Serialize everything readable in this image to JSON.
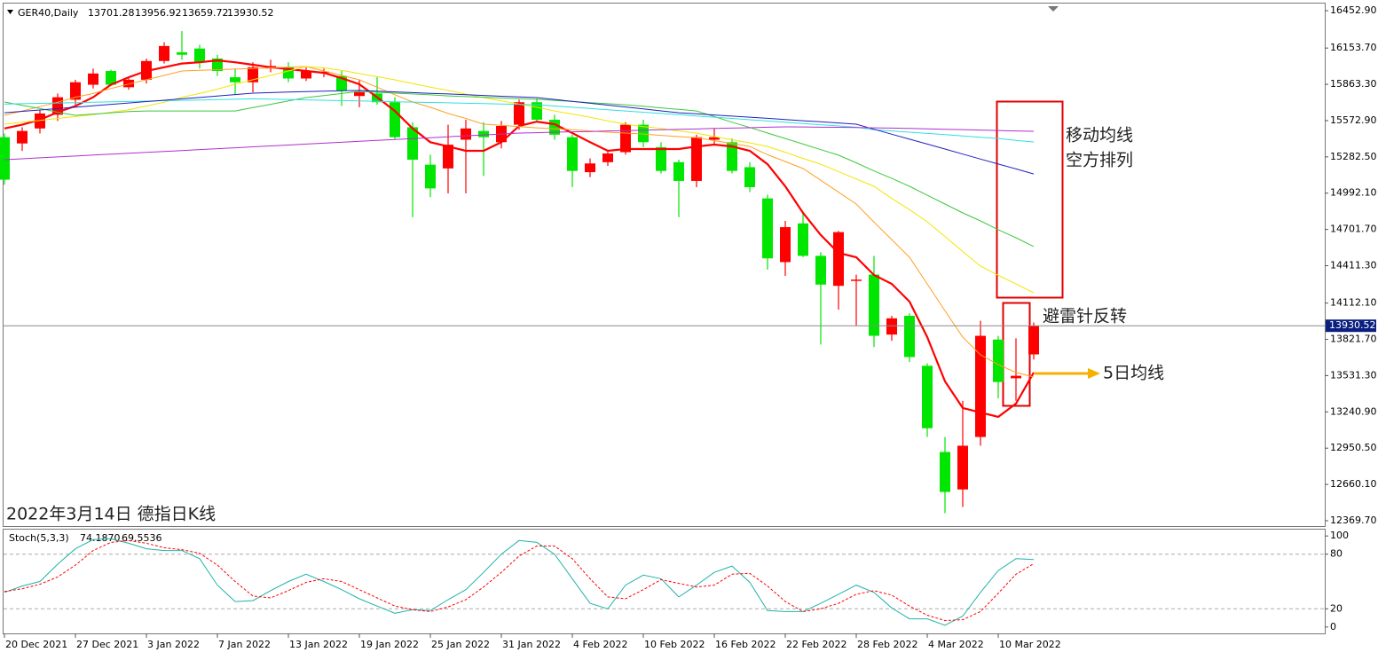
{
  "chart_data": [
    {
      "type": "candlestick",
      "symbol": "GER40,Daily",
      "annotations": [
        "移动均线",
        "空方排列",
        "避雷针反转",
        "5日均线",
        "2022年3月14日 德指日K线"
      ],
      "categories": [
        "20 Dec 2021",
        null,
        null,
        null,
        "27 Dec 2021",
        null,
        null,
        null,
        "3 Jan 2022",
        null,
        null,
        null,
        "7 Jan 2022",
        null,
        null,
        null,
        "13 Jan 2022",
        null,
        null,
        null,
        "19 Jan 2022",
        null,
        null,
        null,
        "25 Jan 2022",
        null,
        null,
        null,
        "31 Jan 2022",
        null,
        null,
        null,
        "4 Feb 2022",
        null,
        null,
        null,
        "10 Feb 2022",
        null,
        null,
        null,
        "16 Feb 2022",
        null,
        null,
        null,
        "22 Feb 2022",
        null,
        null,
        null,
        "28 Feb 2022",
        null,
        null,
        null,
        "4 Mar 2022",
        null,
        null,
        null,
        "10 Mar 2022",
        null,
        null
      ],
      "open": [
        15440,
        15390,
        15510,
        15620,
        15740,
        15860,
        15970,
        15840,
        15900,
        16050,
        16120,
        16150,
        16070,
        15920,
        15880,
        15990,
        16000,
        15910,
        15955,
        15930,
        15770,
        15790,
        15720,
        15520,
        15220,
        15190,
        15420,
        15490,
        15400,
        15540,
        15720,
        15580,
        15440,
        15160,
        15240,
        15320,
        15540,
        15360,
        15240,
        15090,
        15420,
        15400,
        15200,
        14950,
        14440,
        14750,
        14490,
        14250,
        14290,
        14340,
        13860,
        14010,
        13610,
        12920,
        12620,
        13040,
        13820,
        13510,
        13701.28
      ],
      "high": [
        15470,
        15520,
        15660,
        15790,
        15900,
        15990,
        15980,
        15920,
        16070,
        16200,
        16290,
        16180,
        16100,
        15990,
        16040,
        16060,
        16040,
        16000,
        15990,
        15970,
        15900,
        15920,
        15760,
        15560,
        15300,
        15540,
        15580,
        15560,
        15570,
        15740,
        15750,
        15620,
        15460,
        15270,
        15340,
        15560,
        15580,
        15400,
        15260,
        15460,
        15510,
        15430,
        15240,
        14980,
        14770,
        14830,
        14520,
        14690,
        14340,
        14490,
        14010,
        14030,
        13630,
        13040,
        13330,
        13970,
        13850,
        13830,
        13956.92
      ],
      "low": [
        15060,
        15330,
        15470,
        15570,
        15700,
        15830,
        15850,
        15820,
        15870,
        16030,
        16060,
        15990,
        15930,
        15780,
        15800,
        15960,
        15880,
        15890,
        15920,
        15690,
        15680,
        15700,
        15420,
        14800,
        14960,
        14990,
        14990,
        15130,
        15350,
        15500,
        15560,
        15420,
        15040,
        15120,
        15210,
        15300,
        15360,
        15150,
        14800,
        15040,
        15380,
        15150,
        15000,
        14380,
        14330,
        14480,
        13780,
        14060,
        13930,
        13760,
        13810,
        13640,
        13040,
        12430,
        12480,
        12970,
        13350,
        13330,
        13659.72
      ],
      "close": [
        15100,
        15490,
        15630,
        15760,
        15880,
        15950,
        15860,
        15900,
        16050,
        16170,
        16100,
        16040,
        15970,
        15880,
        16000,
        16010,
        15910,
        15970,
        15965,
        15810,
        15800,
        15720,
        15440,
        15260,
        15030,
        15380,
        15510,
        15440,
        15530,
        15720,
        15580,
        15460,
        15170,
        15230,
        15310,
        15540,
        15400,
        15170,
        15090,
        15440,
        15440,
        15170,
        15040,
        14470,
        14720,
        14490,
        14260,
        14680,
        14300,
        13850,
        13990,
        13680,
        13110,
        12600,
        12970,
        13850,
        13480,
        13530,
        13930.52
      ],
      "up_color": "#ff0000",
      "down_color": "#00e600",
      "series": [
        {
          "color": "#ff0000",
          "width": 2.2,
          "values": [
            15510,
            15540,
            15580,
            15640,
            15690,
            15760,
            15860,
            15920,
            15970,
            16000,
            16030,
            16040,
            16055,
            16040,
            16020,
            16000,
            15985,
            15970,
            15955,
            15913,
            15864,
            15760,
            15650,
            15510,
            15400,
            15366,
            15331,
            15331,
            15400,
            15530,
            15565,
            15544,
            15473,
            15400,
            15331,
            15345,
            15345,
            15345,
            15345,
            15366,
            15381,
            15366,
            15331,
            15224,
            15047,
            14834,
            14657,
            14514,
            14479,
            14337,
            14266,
            14124,
            13840,
            13485,
            13272,
            13237,
            13201,
            13307,
            13556
          ]
        },
        {
          "color": "#ffa020",
          "width": 1,
          "values": [
            15615,
            15650,
            15685,
            15720,
            15760,
            15790,
            15830,
            15865,
            15900,
            15935,
            15970,
            15975,
            15980,
            15985,
            15990,
            15995,
            16000,
            16006,
            15970,
            15935,
            15899,
            15840,
            15780,
            15722,
            15680,
            15630,
            15590,
            15544,
            15535,
            15525,
            15515,
            15508,
            15500,
            15490,
            15480,
            15473,
            15465,
            15455,
            15445,
            15437,
            15413,
            15390,
            15366,
            15300,
            15245,
            15189,
            15095,
            15000,
            14905,
            14760,
            14620,
            14479,
            14265,
            14050,
            13840,
            13698,
            13620,
            13556,
            13520
          ]
        },
        {
          "color": "#f2e600",
          "width": 1,
          "values": [
            15544,
            15560,
            15575,
            15590,
            15605,
            15620,
            15640,
            15660,
            15690,
            15720,
            15760,
            15790,
            15825,
            15864,
            15900,
            15935,
            15970,
            16006,
            15995,
            15975,
            15950,
            15925,
            15899,
            15870,
            15840,
            15815,
            15785,
            15757,
            15730,
            15705,
            15680,
            15650,
            15625,
            15600,
            15570,
            15544,
            15525,
            15510,
            15490,
            15473,
            15445,
            15420,
            15395,
            15366,
            15320,
            15270,
            15224,
            15165,
            15105,
            15047,
            14950,
            14860,
            14763,
            14645,
            14525,
            14408,
            14335,
            14265,
            14195
          ]
        },
        {
          "color": "#3cc83c",
          "width": 1,
          "values": [
            15722,
            15695,
            15670,
            15640,
            15615,
            15625,
            15635,
            15645,
            15650,
            15650,
            15650,
            15650,
            15650,
            15650,
            15677,
            15703,
            15730,
            15757,
            15773,
            15790,
            15807,
            15800,
            15793,
            15786,
            15779,
            15771,
            15765,
            15760,
            15754,
            15748,
            15743,
            15735,
            15726,
            15717,
            15708,
            15700,
            15688,
            15675,
            15663,
            15650,
            15605,
            15560,
            15518,
            15473,
            15430,
            15385,
            15340,
            15296,
            15235,
            15170,
            15110,
            15047,
            14975,
            14905,
            14834,
            14770,
            14700,
            14635,
            14565
          ]
        },
        {
          "color": "#30e0e0",
          "width": 1,
          "values": [
            15705,
            15708,
            15711,
            15714,
            15717,
            15720,
            15723,
            15726,
            15729,
            15732,
            15735,
            15738,
            15741,
            15744,
            15747,
            15745,
            15742,
            15739,
            15736,
            15733,
            15730,
            15727,
            15724,
            15721,
            15718,
            15715,
            15712,
            15709,
            15706,
            15703,
            15700,
            15690,
            15680,
            15670,
            15660,
            15650,
            15640,
            15630,
            15620,
            15610,
            15600,
            15590,
            15580,
            15570,
            15560,
            15550,
            15540,
            15530,
            15520,
            15500,
            15490,
            15480,
            15470,
            15460,
            15450,
            15440,
            15430,
            15415,
            15402
          ]
        },
        {
          "color": "#2020c0",
          "width": 1,
          "values": [
            15636,
            15647,
            15658,
            15669,
            15680,
            15691,
            15703,
            15714,
            15725,
            15736,
            15747,
            15758,
            15770,
            15781,
            15793,
            15797,
            15801,
            15805,
            15809,
            15812,
            15814,
            15808,
            15803,
            15797,
            15791,
            15786,
            15780,
            15774,
            15768,
            15763,
            15757,
            15742,
            15727,
            15712,
            15697,
            15682,
            15667,
            15651,
            15636,
            15627,
            15618,
            15609,
            15600,
            15591,
            15581,
            15572,
            15563,
            15554,
            15544,
            15504,
            15464,
            15424,
            15385,
            15345,
            15305,
            15265,
            15225,
            15186,
            15146
          ]
        },
        {
          "color": "#b030d0",
          "width": 1,
          "values": [
            15260,
            15267,
            15275,
            15282,
            15289,
            15297,
            15304,
            15311,
            15319,
            15326,
            15333,
            15341,
            15348,
            15355,
            15363,
            15370,
            15377,
            15385,
            15392,
            15399,
            15407,
            15414,
            15421,
            15429,
            15436,
            15443,
            15451,
            15458,
            15465,
            15473,
            15476,
            15480,
            15483,
            15486,
            15490,
            15493,
            15496,
            15500,
            15503,
            15506,
            15510,
            15513,
            15516,
            15520,
            15523,
            15522,
            15520,
            15519,
            15517,
            15515,
            15513,
            15510,
            15507,
            15504,
            15501,
            15497,
            15494,
            15490,
            15487
          ]
        }
      ],
      "ylim": [
        12327,
        16510
      ],
      "yticks": [
        {
          "value": 16452.9,
          "label": "16452.90"
        },
        {
          "value": 16153.7,
          "label": "16153.70"
        },
        {
          "value": 15863.3,
          "label": "15863.30"
        },
        {
          "value": 15572.9,
          "label": "15572.90"
        },
        {
          "value": 15282.5,
          "label": "15282.50"
        },
        {
          "value": 14992.1,
          "label": "14992.10"
        },
        {
          "value": 14701.7,
          "label": "14701.70"
        },
        {
          "value": 14411.3,
          "label": "14411.30"
        },
        {
          "value": 14112.1,
          "label": "14112.10"
        },
        {
          "value": 13821.7,
          "label": "13821.70"
        },
        {
          "value": 13531.3,
          "label": "13531.30"
        },
        {
          "value": 13240.9,
          "label": "13240.90"
        },
        {
          "value": 12950.5,
          "label": "12950.50"
        },
        {
          "value": 12660.1,
          "label": "12660.10"
        },
        {
          "value": 12369.7,
          "label": "12369.70"
        }
      ],
      "current_price_line": true
    },
    {
      "type": "line",
      "title": "Stoch(5,3,3)",
      "series": [
        {
          "color": "#20b2aa",
          "dash": false,
          "values": [
            38,
            45,
            50,
            69,
            86,
            96,
            97,
            92,
            86,
            84,
            84,
            75,
            46,
            28,
            29,
            40,
            50,
            58,
            50,
            41,
            31,
            23,
            15,
            19,
            18,
            30,
            41,
            60,
            80,
            95,
            93,
            80,
            53,
            26,
            20,
            46,
            57,
            53,
            33,
            46,
            60,
            67,
            49,
            18,
            17,
            17,
            26,
            36,
            46,
            38,
            21,
            9,
            9,
            2,
            12,
            38,
            62,
            75,
            74.187
          ],
          "value_labels": [
            null,
            null,
            null,
            null,
            null,
            null,
            null,
            null,
            null,
            null,
            null,
            null,
            null,
            null,
            null,
            null,
            null,
            null,
            null,
            null,
            null,
            null,
            null,
            null,
            null,
            null,
            null,
            null,
            null,
            null,
            null,
            null,
            null,
            null,
            null,
            null,
            null,
            null,
            null,
            null,
            null,
            null,
            null,
            null,
            null,
            null,
            null,
            null,
            null,
            null,
            null,
            null,
            null,
            null,
            null,
            null,
            null,
            null,
            "74.1870"
          ]
        },
        {
          "color": "#ff0000",
          "dash": true,
          "values": [
            39,
            42,
            47,
            55,
            68,
            84,
            93,
            95,
            92,
            87,
            85,
            81,
            68,
            50,
            34,
            32,
            40,
            49,
            53,
            50,
            41,
            32,
            23,
            19,
            17,
            22,
            30,
            44,
            60,
            78,
            89,
            89,
            75,
            53,
            33,
            31,
            41,
            52,
            48,
            44,
            46,
            58,
            59,
            45,
            28,
            17,
            20,
            26,
            36,
            40,
            35,
            23,
            13,
            7,
            8,
            17,
            37,
            58,
            69.5536
          ],
          "value_labels": [
            null,
            null,
            null,
            null,
            null,
            null,
            null,
            null,
            null,
            null,
            null,
            null,
            null,
            null,
            null,
            null,
            null,
            null,
            null,
            null,
            null,
            null,
            null,
            null,
            null,
            null,
            null,
            null,
            null,
            null,
            null,
            null,
            null,
            null,
            null,
            null,
            null,
            null,
            null,
            null,
            null,
            null,
            null,
            null,
            null,
            null,
            null,
            null,
            null,
            null,
            null,
            null,
            null,
            null,
            null,
            null,
            null,
            null,
            "69.5536"
          ]
        }
      ],
      "ylim": [
        -7,
        107
      ],
      "yticks": [
        100,
        80,
        20,
        0
      ],
      "levels": [
        80,
        20
      ]
    }
  ]
}
